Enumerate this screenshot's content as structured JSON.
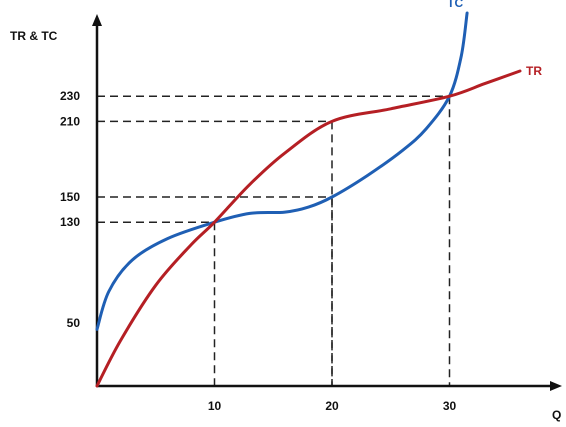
{
  "chart_data": {
    "type": "line",
    "title": "",
    "xlabel": "Q",
    "ylabel": "TR & TC",
    "x_ticks": [
      10,
      20,
      30
    ],
    "y_ticks": [
      50,
      130,
      150,
      210,
      230
    ],
    "guides": [
      {
        "x": 10,
        "y": 130
      },
      {
        "x": 20,
        "y": 150
      },
      {
        "x": 20,
        "y": 210
      },
      {
        "x": 30,
        "y": 230
      }
    ],
    "series": [
      {
        "name": "TC",
        "color": "#1f5fb4",
        "points": [
          [
            0,
            45
          ],
          [
            1,
            75
          ],
          [
            3,
            100
          ],
          [
            6,
            117
          ],
          [
            10,
            130
          ],
          [
            13,
            137
          ],
          [
            16,
            138
          ],
          [
            18,
            142
          ],
          [
            20,
            150
          ],
          [
            23,
            167
          ],
          [
            26,
            187
          ],
          [
            28,
            204
          ],
          [
            30,
            230
          ],
          [
            31,
            262
          ],
          [
            31.5,
            296
          ]
        ]
      },
      {
        "name": "TR",
        "color": "#b51f24",
        "points": [
          [
            0,
            0
          ],
          [
            2,
            36
          ],
          [
            5,
            80
          ],
          [
            8,
            112
          ],
          [
            10,
            130
          ],
          [
            13,
            160
          ],
          [
            16,
            185
          ],
          [
            20,
            210
          ],
          [
            25,
            220
          ],
          [
            30,
            230
          ],
          [
            33,
            240
          ],
          [
            36,
            250
          ]
        ]
      }
    ]
  }
}
